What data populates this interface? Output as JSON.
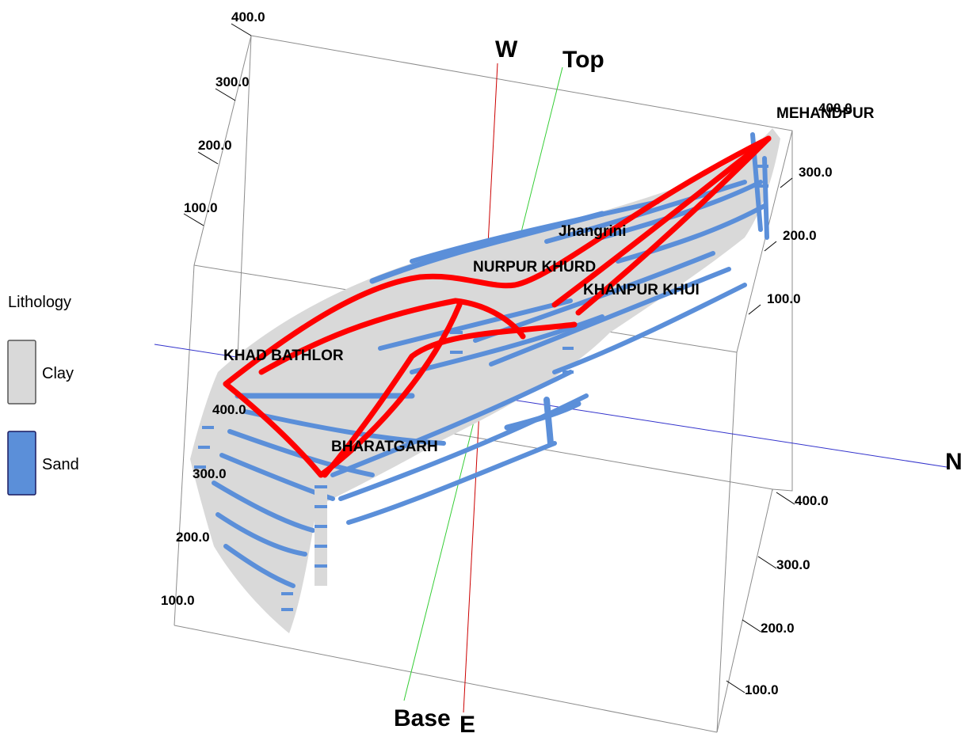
{
  "legend": {
    "title": "Lithology",
    "items": [
      {
        "label": "Clay",
        "color": "#d9d9d9"
      },
      {
        "label": "Sand",
        "color": "#5b8fd9"
      }
    ]
  },
  "axes": {
    "west": "W",
    "east": "E",
    "north": "N",
    "top": "Top",
    "base": "Base"
  },
  "ticks": {
    "back_left": [
      "400.0",
      "300.0",
      "200.0",
      "100.0"
    ],
    "front_left": [
      "400.0",
      "300.0",
      "200.0",
      "100.0"
    ],
    "back_right": [
      "400.0",
      "300.0",
      "200.0",
      "100.0"
    ],
    "front_right": [
      "400.0",
      "300.0",
      "200.0",
      "100.0"
    ]
  },
  "sites": {
    "mehandpur": "MEHANDPUR",
    "jhangrini": "Jhangrini",
    "nurpur_khurd": "NURPUR KHURD",
    "khanpur_khui": "KHANPUR KHUI",
    "khad_bathlor": "KHAD BATHLOR",
    "bharatgarh": "BHARATGARH"
  },
  "colors": {
    "clay": "#d9d9d9",
    "sand": "#5b8fd9",
    "fence": "#ff0000",
    "axis_w_e": "#cc0000",
    "axis_top_base": "#33cc33",
    "axis_n": "#3333cc",
    "box": "#8c8c8c"
  }
}
